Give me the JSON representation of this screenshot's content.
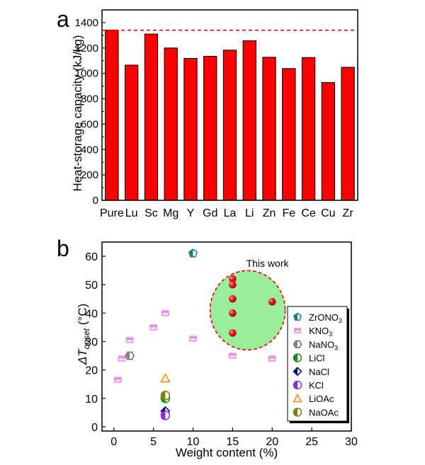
{
  "chart_data": [
    {
      "panel": "a",
      "type": "bar",
      "panel_label": "a",
      "ylabel": "Heat-storage capacity (kJ/kg)",
      "xlabel": "",
      "categories": [
        "Pure",
        "Lu",
        "Sc",
        "Mg",
        "Y",
        "Gd",
        "La",
        "Li",
        "Zn",
        "Fe",
        "Ce",
        "Cu",
        "Zr"
      ],
      "values": [
        1340,
        1065,
        1310,
        1200,
        1118,
        1135,
        1183,
        1257,
        1127,
        1038,
        1125,
        928,
        1048
      ],
      "ylim": [
        0,
        1500
      ],
      "yticks": [
        "0",
        "200",
        "400",
        "600",
        "800",
        "1000",
        "1200",
        "1400"
      ],
      "reference_line": 1340,
      "bar_color": "#ff0000",
      "line_color": "#e60000"
    },
    {
      "panel": "b",
      "type": "scatter",
      "panel_label": "b",
      "ylabel_main": "ΔT",
      "ylabel_sub": "onset",
      "ylabel_unit": " (°C)",
      "xlabel": "Weight content (%)",
      "xlim": [
        -1.5,
        30
      ],
      "ylim": [
        -1.5,
        65
      ],
      "xticks": [
        "0",
        "5",
        "10",
        "15",
        "20",
        "25",
        "30"
      ],
      "yticks": [
        "0",
        "10",
        "20",
        "30",
        "40",
        "50",
        "60"
      ],
      "annotation": "This work",
      "highlight_color": "#99ee99",
      "series": [
        {
          "name": "ZrONO3",
          "marker": "pentagon",
          "color": "#1a8080",
          "points": [
            [
              10,
              61
            ]
          ]
        },
        {
          "name": "KNO3",
          "marker": "square",
          "color": "#ee88ee",
          "points": [
            [
              0.5,
              16.5
            ],
            [
              1,
              24
            ],
            [
              2,
              30.5
            ],
            [
              5,
              35
            ],
            [
              6.5,
              40
            ],
            [
              10,
              31
            ],
            [
              15,
              25
            ],
            [
              20,
              24
            ]
          ]
        },
        {
          "name": "NaNO3",
          "marker": "hexagon",
          "color": "#888888",
          "points": [
            [
              2,
              25
            ]
          ]
        },
        {
          "name": "LiCl",
          "marker": "half-circle",
          "color": "#1a8a1a",
          "points": [
            [
              6.5,
              10
            ]
          ]
        },
        {
          "name": "NaCl",
          "marker": "diamond",
          "color": "#000080",
          "points": [
            [
              6.5,
              5.5
            ]
          ]
        },
        {
          "name": "KCl",
          "marker": "half-circle",
          "color": "#8a2be2",
          "points": [
            [
              6.5,
              4
            ]
          ]
        },
        {
          "name": "LiOAc",
          "marker": "triangle",
          "color": "#ff8c00",
          "points": [
            [
              6.5,
              17
            ]
          ]
        },
        {
          "name": "NaOAc",
          "marker": "half-circle",
          "color": "#808000",
          "points": [
            [
              6.5,
              11
            ]
          ]
        },
        {
          "name": "This work",
          "marker": "ball",
          "color": "#ee0000",
          "points": [
            [
              15,
              52
            ],
            [
              15,
              50
            ],
            [
              15,
              45
            ],
            [
              15,
              40
            ],
            [
              15,
              33
            ],
            [
              20,
              44
            ]
          ]
        }
      ],
      "legend": [
        {
          "label": "ZrONO",
          "sub": "3",
          "marker": "pentagon",
          "color": "#1a8080"
        },
        {
          "label": "KNO",
          "sub": "3",
          "marker": "square",
          "color": "#ee88ee"
        },
        {
          "label": "NaNO",
          "sub": "3",
          "marker": "hexagon",
          "color": "#888888"
        },
        {
          "label": "LiCl",
          "sub": "",
          "marker": "half-circle",
          "color": "#1a8a1a"
        },
        {
          "label": "NaCl",
          "sub": "",
          "marker": "diamond",
          "color": "#000080"
        },
        {
          "label": "KCl",
          "sub": "",
          "marker": "half-circle",
          "color": "#8a2be2"
        },
        {
          "label": "LiOAc",
          "sub": "",
          "marker": "triangle",
          "color": "#ff8c00"
        },
        {
          "label": "NaOAc",
          "sub": "",
          "marker": "half-circle",
          "color": "#808000"
        }
      ]
    }
  ]
}
